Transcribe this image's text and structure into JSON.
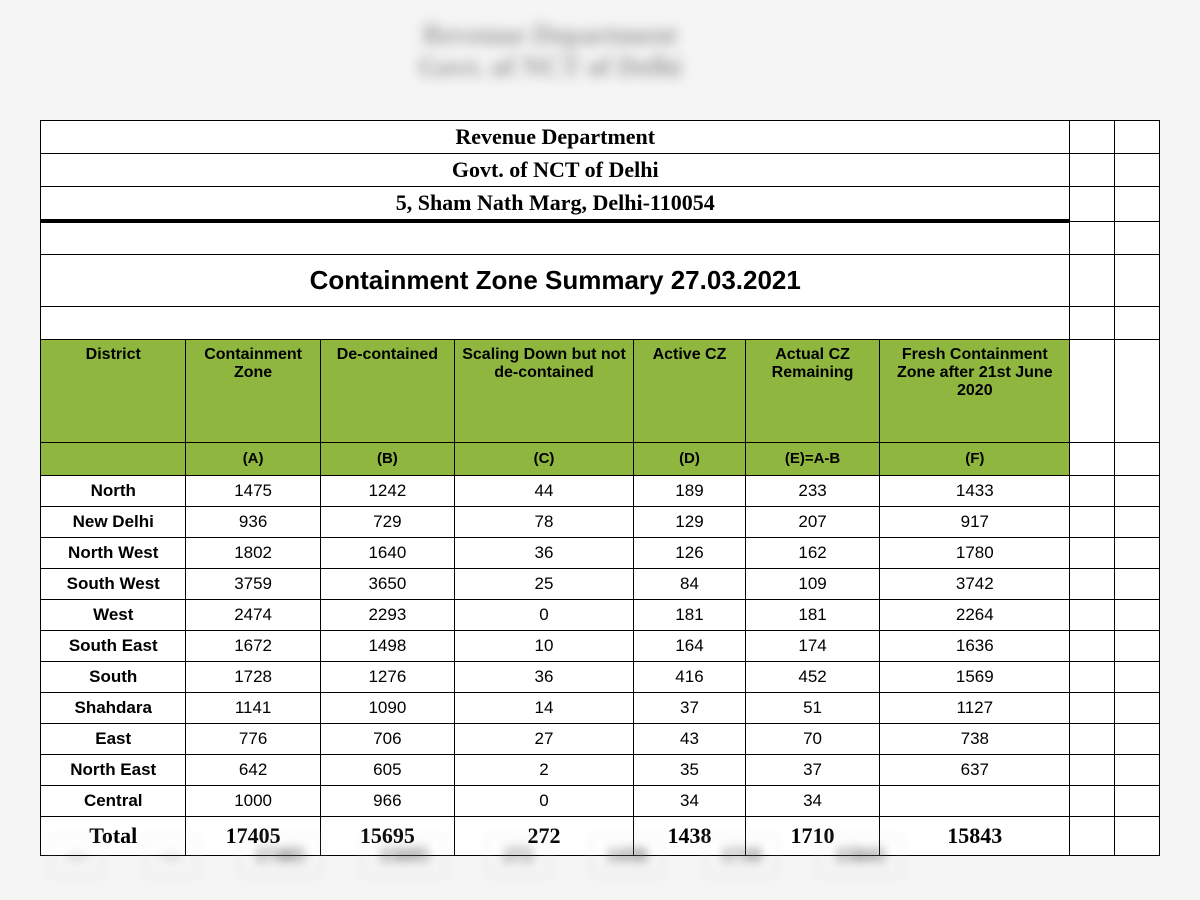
{
  "header": {
    "line1": "Revenue Department",
    "line2": "Govt. of NCT of Delhi",
    "line3": "5, Sham Nath Marg, Delhi-110054"
  },
  "title": "Containment Zone Summary 27.03.2021",
  "columns": {
    "c0": "District",
    "c1": "Containment Zone",
    "c2": "De-contained",
    "c3": "Scaling Down but not de-contained",
    "c4": "Active CZ",
    "c5": "Actual CZ Remaining",
    "c6": "Fresh Containment Zone after 21st June 2020"
  },
  "sub": {
    "s1": "(A)",
    "s2": "(B)",
    "s3": "(C)",
    "s4": "(D)",
    "s5": "(E)=A-B",
    "s6": "(F)"
  },
  "rows": [
    {
      "d": "North",
      "a": "1475",
      "b": "1242",
      "c": "44",
      "act": "189",
      "e": "233",
      "f": "1433"
    },
    {
      "d": "New Delhi",
      "a": "936",
      "b": "729",
      "c": "78",
      "act": "129",
      "e": "207",
      "f": "917"
    },
    {
      "d": "North West",
      "a": "1802",
      "b": "1640",
      "c": "36",
      "act": "126",
      "e": "162",
      "f": "1780"
    },
    {
      "d": "South West",
      "a": "3759",
      "b": "3650",
      "c": "25",
      "act": "84",
      "e": "109",
      "f": "3742"
    },
    {
      "d": "West",
      "a": "2474",
      "b": "2293",
      "c": "0",
      "act": "181",
      "e": "181",
      "f": "2264"
    },
    {
      "d": "South East",
      "a": "1672",
      "b": "1498",
      "c": "10",
      "act": "164",
      "e": "174",
      "f": "1636"
    },
    {
      "d": "South",
      "a": "1728",
      "b": "1276",
      "c": "36",
      "act": "416",
      "e": "452",
      "f": "1569"
    },
    {
      "d": "Shahdara",
      "a": "1141",
      "b": "1090",
      "c": "14",
      "act": "37",
      "e": "51",
      "f": "1127"
    },
    {
      "d": "East",
      "a": "776",
      "b": "706",
      "c": "27",
      "act": "43",
      "e": "70",
      "f": "738"
    },
    {
      "d": "North East",
      "a": "642",
      "b": "605",
      "c": "2",
      "act": "35",
      "e": "37",
      "f": "637"
    },
    {
      "d": "Central",
      "a": "1000",
      "b": "966",
      "c": "0",
      "act": "34",
      "e": "34",
      "f": ""
    }
  ],
  "total": {
    "label": "Total",
    "a": "17405",
    "b": "15695",
    "c": "272",
    "act": "1438",
    "e": "1710",
    "f": "15843"
  },
  "style": {
    "header_bg": "#8fb63f",
    "border_color": "#000000",
    "page_bg": "#f5f5f5",
    "cell_bg": "#ffffff",
    "header_font": "Arial",
    "body_font": "Arial",
    "title_fontsize": 26,
    "header_fontsize": 22,
    "col_widths_pct": [
      13,
      12,
      12,
      16,
      10,
      12,
      17,
      4,
      4
    ]
  }
}
